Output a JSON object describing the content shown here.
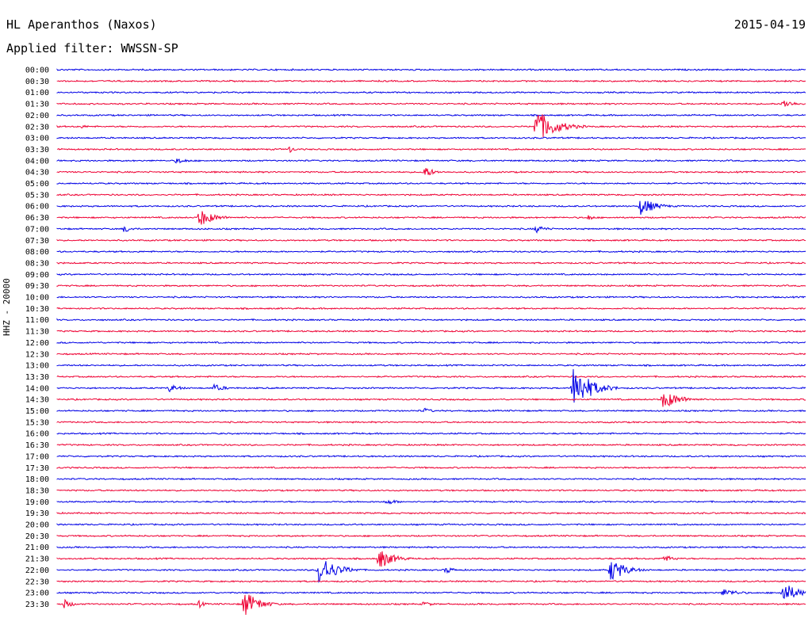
{
  "header": {
    "station": "HL Aperanthos (Naxos)",
    "date": "2015-04-19",
    "filter_label": "Applied filter: WWSSN-SP",
    "channel_label": "HHZ - 20000"
  },
  "colors": {
    "blue": "#0000e6",
    "red": "#ee0033"
  },
  "chart_data": {
    "type": "line",
    "title": "HL Aperanthos (Naxos)",
    "subtitle": "Applied filter: WWSSN-SP",
    "date": "2015-04-19",
    "ylabel": "HHZ - 20000",
    "row_labels": [
      "00:00",
      "00:30",
      "01:00",
      "01:30",
      "02:00",
      "02:30",
      "03:00",
      "03:30",
      "04:00",
      "04:30",
      "05:00",
      "05:30",
      "06:00",
      "06:30",
      "07:00",
      "07:30",
      "08:00",
      "08:30",
      "09:00",
      "09:30",
      "10:00",
      "10:30",
      "11:00",
      "11:30",
      "12:00",
      "12:30",
      "13:00",
      "13:30",
      "14:00",
      "14:30",
      "15:00",
      "15:30",
      "16:00",
      "16:30",
      "17:00",
      "17:30",
      "18:00",
      "18:30",
      "19:00",
      "19:30",
      "20:00",
      "20:30",
      "21:00",
      "21:30",
      "22:00",
      "22:30",
      "23:00",
      "23:30"
    ],
    "series": [
      {
        "row_color_pattern": "alternating blue/red starting blue"
      }
    ],
    "events": [
      {
        "row": 3,
        "x": 0.97,
        "amp": 6,
        "dur": 0.04
      },
      {
        "row": 5,
        "x": 0.64,
        "amp": 22,
        "dur": 0.07
      },
      {
        "row": 5,
        "x": 0.03,
        "amp": 3,
        "dur": 0.03
      },
      {
        "row": 7,
        "x": 0.31,
        "amp": 5,
        "dur": 0.02
      },
      {
        "row": 8,
        "x": 0.16,
        "amp": 4,
        "dur": 0.04
      },
      {
        "row": 9,
        "x": 0.49,
        "amp": 9,
        "dur": 0.03
      },
      {
        "row": 12,
        "x": 0.78,
        "amp": 12,
        "dur": 0.05
      },
      {
        "row": 13,
        "x": 0.19,
        "amp": 12,
        "dur": 0.05
      },
      {
        "row": 13,
        "x": 0.71,
        "amp": 4,
        "dur": 0.02
      },
      {
        "row": 14,
        "x": 0.09,
        "amp": 5,
        "dur": 0.03
      },
      {
        "row": 14,
        "x": 0.64,
        "amp": 5,
        "dur": 0.04
      },
      {
        "row": 28,
        "x": 0.69,
        "amp": 30,
        "dur": 0.06
      },
      {
        "row": 28,
        "x": 0.15,
        "amp": 5,
        "dur": 0.04
      },
      {
        "row": 28,
        "x": 0.21,
        "amp": 5,
        "dur": 0.04
      },
      {
        "row": 29,
        "x": 0.81,
        "amp": 12,
        "dur": 0.06
      },
      {
        "row": 30,
        "x": 0.49,
        "amp": 4,
        "dur": 0.03
      },
      {
        "row": 38,
        "x": 0.44,
        "amp": 4,
        "dur": 0.04
      },
      {
        "row": 43,
        "x": 0.43,
        "amp": 14,
        "dur": 0.05
      },
      {
        "row": 43,
        "x": 0.81,
        "amp": 5,
        "dur": 0.04
      },
      {
        "row": 44,
        "x": 0.35,
        "amp": 20,
        "dur": 0.06
      },
      {
        "row": 44,
        "x": 0.74,
        "amp": 16,
        "dur": 0.05
      },
      {
        "row": 44,
        "x": 0.52,
        "amp": 5,
        "dur": 0.03
      },
      {
        "row": 46,
        "x": 0.97,
        "amp": 14,
        "dur": 0.05
      },
      {
        "row": 46,
        "x": 0.89,
        "amp": 5,
        "dur": 0.06
      },
      {
        "row": 47,
        "x": 0.25,
        "amp": 18,
        "dur": 0.05
      },
      {
        "row": 47,
        "x": 0.01,
        "amp": 6,
        "dur": 0.03
      },
      {
        "row": 47,
        "x": 0.19,
        "amp": 5,
        "dur": 0.02
      },
      {
        "row": 47,
        "x": 0.49,
        "amp": 4,
        "dur": 0.03
      }
    ]
  }
}
